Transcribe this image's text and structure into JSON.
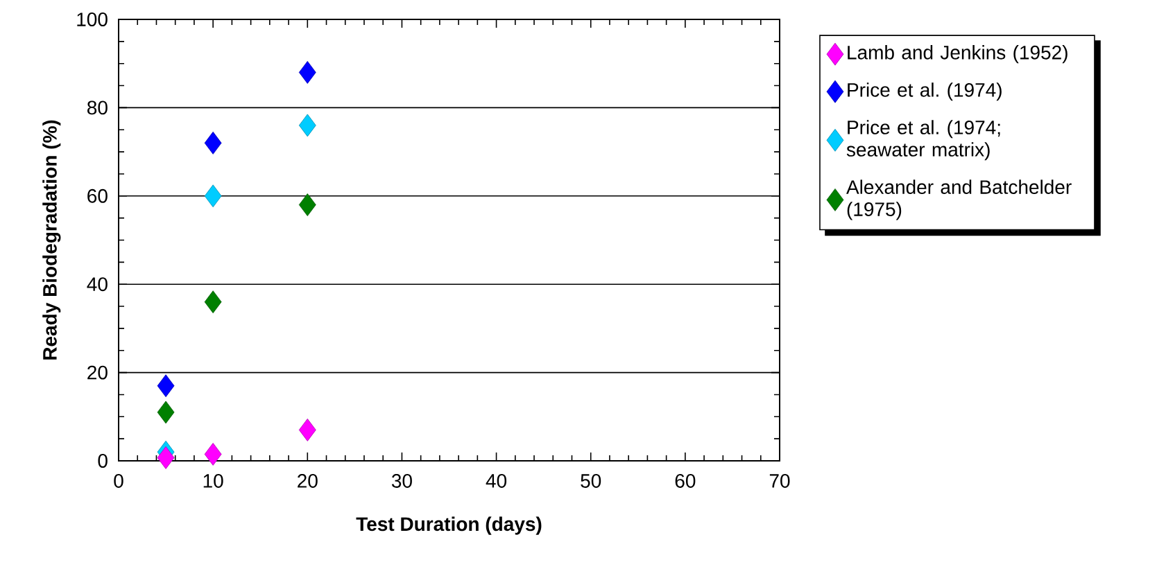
{
  "chart_data": {
    "type": "scatter",
    "xlabel": "Test Duration (days)",
    "ylabel": "Ready Biodegradation (%)",
    "xlim": [
      0,
      70
    ],
    "xticks": [
      0,
      10,
      20,
      30,
      40,
      50,
      60,
      70
    ],
    "ylim": [
      0,
      100
    ],
    "yticks": [
      0,
      20,
      40,
      60,
      80,
      100
    ],
    "grid": "y",
    "legend": "right",
    "marker": "diamond",
    "series": [
      {
        "name": "Lamb and Jenkins (1952)",
        "color": "#ff00ff",
        "x": [
          5,
          10,
          20
        ],
        "values": [
          0.7,
          1.5,
          7
        ]
      },
      {
        "name": "Price et al. (1974)",
        "color": "#0000ff",
        "x": [
          5,
          10,
          20
        ],
        "values": [
          17,
          72,
          88
        ]
      },
      {
        "name": "Price et al. (1974; seawater matrix)",
        "color": "#00ccff",
        "x": [
          5,
          10,
          20
        ],
        "values": [
          2,
          60,
          76
        ]
      },
      {
        "name": "Alexander and Batchelder (1975)",
        "color": "#008000",
        "x": [
          5,
          10,
          20
        ],
        "values": [
          11,
          36,
          58
        ]
      }
    ]
  }
}
